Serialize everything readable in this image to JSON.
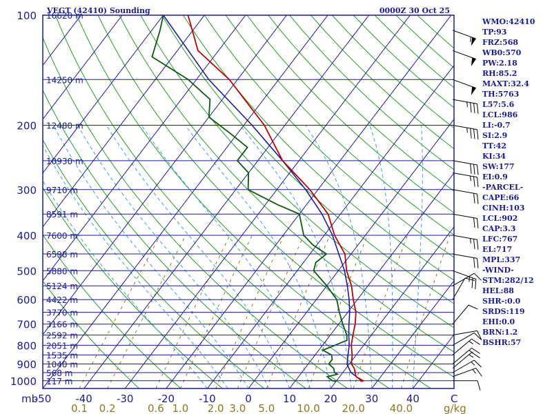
{
  "header": {
    "station": "VEGT (42410) Sounding",
    "time": "0000Z 30 Oct 25"
  },
  "indices": [
    "WMO:42410",
    "TP:93",
    "FRZ:568",
    "WB0:570",
    "PW:2.18",
    "RH:85.2",
    "MAXT:32.4",
    "TH:5763",
    "L57:5.6",
    "LCL:986",
    "LI:-0.7",
    "SI:2.9",
    "TT:42",
    "KI:34",
    "SW:177",
    "EI:0.9",
    "-PARCEL-",
    "CAPE:66",
    "CINH:103",
    "LCL:902",
    "CAP:3.3",
    "LFC:767",
    "EL:717",
    "MPL:337",
    "-WIND-",
    "STM:282/12",
    "HEL:88",
    "SHR-:0.0",
    "SRDS:119",
    "EHI:0.0",
    "BRN:1.2",
    "BSHR:57"
  ],
  "colors": {
    "frame": "#1a1a9c",
    "isobar": "#1a1a9c",
    "isotherm": "#1a1a9c",
    "dry_adiabat": "#22a022",
    "moist_adiabat": "#3aa0e0",
    "mixing_ratio": "#8a7a1a",
    "temperature": "#c00000",
    "dewpoint": "#0a5a0a",
    "parcel": "#1a1aa8",
    "wind_barb": "#000000"
  },
  "chart_data": {
    "type": "skew-t log-p",
    "title": "VEGT (42410) Sounding",
    "xlabel": "°C",
    "ylabel": "mb",
    "pressure_ticks": [
      100,
      200,
      300,
      400,
      500,
      600,
      700,
      800,
      900,
      1000
    ],
    "temperature_ticks": [
      "-50",
      "-40",
      "-30",
      "-20",
      "-10",
      "0",
      "10",
      "20",
      "30",
      "40"
    ],
    "temperature_unit_label": "C",
    "mixing_ratio_ticks": [
      "0.1",
      "0.2",
      "0.6",
      "1.0",
      "2.0",
      "3.0",
      "5.0",
      "10.0",
      "20.0",
      "40.0"
    ],
    "mixing_ratio_unit_label": "g/kg",
    "height_labels": [
      {
        "p": 100,
        "label": "16620 m"
      },
      {
        "p": 150,
        "label": "14250 m"
      },
      {
        "p": 200,
        "label": "12480 m"
      },
      {
        "p": 250,
        "label": "10930 m"
      },
      {
        "p": 300,
        "label": "9710 m"
      },
      {
        "p": 350,
        "label": "8591 m"
      },
      {
        "p": 400,
        "label": "7600 m"
      },
      {
        "p": 450,
        "label": "6598 m"
      },
      {
        "p": 500,
        "label": "5880 m"
      },
      {
        "p": 550,
        "label": "5124 m"
      },
      {
        "p": 600,
        "label": "4422 m"
      },
      {
        "p": 650,
        "label": "3770 m"
      },
      {
        "p": 700,
        "label": "3166 m"
      },
      {
        "p": 750,
        "label": "2592 m"
      },
      {
        "p": 800,
        "label": "2051 m"
      },
      {
        "p": 850,
        "label": "1535 m"
      },
      {
        "p": 900,
        "label": "1040 m"
      },
      {
        "p": 950,
        "label": "568 m"
      },
      {
        "p": 1000,
        "label": "117 m"
      }
    ],
    "temperature_profile": [
      [
        1005,
        26
      ],
      [
        1000,
        26.5
      ],
      [
        975,
        24
      ],
      [
        950,
        23
      ],
      [
        925,
        22
      ],
      [
        900,
        20.5
      ],
      [
        850,
        19
      ],
      [
        800,
        17
      ],
      [
        750,
        15.5
      ],
      [
        700,
        14
      ],
      [
        650,
        12
      ],
      [
        600,
        9
      ],
      [
        550,
        6
      ],
      [
        500,
        2
      ],
      [
        450,
        -1.5
      ],
      [
        400,
        -7.5
      ],
      [
        350,
        -13
      ],
      [
        300,
        -22
      ],
      [
        250,
        -34
      ],
      [
        200,
        -45
      ],
      [
        150,
        -62
      ],
      [
        125,
        -75
      ],
      [
        100,
        -84
      ]
    ],
    "dewpoint_profile": [
      [
        1005,
        20
      ],
      [
        1000,
        19
      ],
      [
        975,
        17
      ],
      [
        960,
        19
      ],
      [
        950,
        18
      ],
      [
        925,
        17
      ],
      [
        900,
        15
      ],
      [
        875,
        15
      ],
      [
        850,
        14
      ],
      [
        825,
        11
      ],
      [
        800,
        13
      ],
      [
        775,
        15
      ],
      [
        750,
        14
      ],
      [
        700,
        11
      ],
      [
        650,
        8
      ],
      [
        600,
        5
      ],
      [
        550,
        0
      ],
      [
        500,
        -6
      ],
      [
        475,
        -7
      ],
      [
        450,
        -6
      ],
      [
        425,
        -11
      ],
      [
        400,
        -15
      ],
      [
        350,
        -20
      ],
      [
        330,
        -27
      ],
      [
        300,
        -37
      ],
      [
        270,
        -40
      ],
      [
        250,
        -45
      ],
      [
        230,
        -45
      ],
      [
        210,
        -52
      ],
      [
        190,
        -60
      ],
      [
        170,
        -63
      ],
      [
        150,
        -72
      ],
      [
        130,
        -85
      ],
      [
        110,
        -88
      ],
      [
        100,
        -90
      ]
    ],
    "parcel_profile": [
      [
        1000,
        26
      ],
      [
        980,
        24.5
      ],
      [
        950,
        22
      ],
      [
        902,
        19.5
      ],
      [
        850,
        18
      ],
      [
        800,
        16.5
      ],
      [
        750,
        14.5
      ],
      [
        700,
        12.5
      ],
      [
        650,
        10.5
      ],
      [
        600,
        8
      ],
      [
        550,
        5
      ],
      [
        500,
        1.5
      ],
      [
        450,
        -3
      ],
      [
        400,
        -8
      ],
      [
        350,
        -14.5
      ],
      [
        300,
        -23
      ],
      [
        250,
        -34
      ],
      [
        200,
        -48
      ],
      [
        150,
        -67
      ],
      [
        100,
        -90
      ]
    ],
    "wind_barbs": [
      {
        "p": 1000,
        "dir": 90,
        "spd": 10
      },
      {
        "p": 975,
        "dir": 70,
        "spd": 15
      },
      {
        "p": 950,
        "dir": 60,
        "spd": 15
      },
      {
        "p": 925,
        "dir": 50,
        "spd": 15
      },
      {
        "p": 900,
        "dir": 50,
        "spd": 15
      },
      {
        "p": 850,
        "dir": 50,
        "spd": 15
      },
      {
        "p": 800,
        "dir": 60,
        "spd": 10
      },
      {
        "p": 750,
        "dir": 80,
        "spd": 10
      },
      {
        "p": 700,
        "dir": 40,
        "spd": 10
      },
      {
        "p": 600,
        "dir": 30,
        "spd": 10
      },
      {
        "p": 550,
        "dir": 60,
        "spd": 10
      },
      {
        "p": 500,
        "dir": 110,
        "spd": 25
      },
      {
        "p": 450,
        "dir": 100,
        "spd": 20
      },
      {
        "p": 400,
        "dir": 100,
        "spd": 25
      },
      {
        "p": 350,
        "dir": 100,
        "spd": 20
      },
      {
        "p": 300,
        "dir": 100,
        "spd": 20
      },
      {
        "p": 270,
        "dir": 100,
        "spd": 25
      },
      {
        "p": 250,
        "dir": 100,
        "spd": 30
      },
      {
        "p": 200,
        "dir": 100,
        "spd": 35
      },
      {
        "p": 170,
        "dir": 100,
        "spd": 35
      },
      {
        "p": 150,
        "dir": 110,
        "spd": 50
      },
      {
        "p": 125,
        "dir": 110,
        "spd": 50
      },
      {
        "p": 110,
        "dir": 110,
        "spd": 55
      }
    ],
    "pressure_range": [
      100,
      1050
    ],
    "temperature_range_bottom": [
      -50,
      50
    ],
    "grid": true
  }
}
